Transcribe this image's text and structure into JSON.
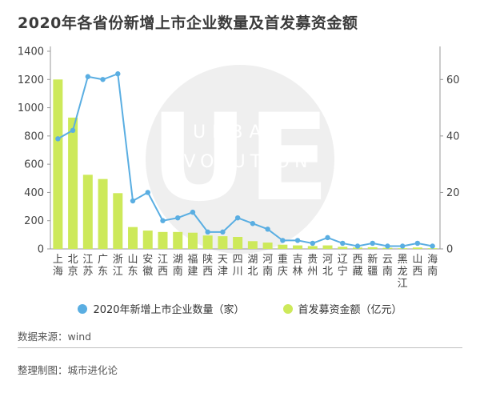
{
  "header": {
    "title": "2020年各省份新增上市企业数量及首发募资金额"
  },
  "watermark": {
    "logo": "UE",
    "line1": "URBAN",
    "line2": "EVOLUTION"
  },
  "legend": {
    "count_label": "2020年新增上市企业数量（家）",
    "amount_label": "首发募资金额（亿元）"
  },
  "footer": {
    "source": "数据来源：wind",
    "credit": "整理制图：城市进化论"
  },
  "colors": {
    "bar": "#cde95a",
    "line": "#5aaee2",
    "axis": "#999999",
    "text": "#444444"
  },
  "chart_data": {
    "type": "bar",
    "categories": [
      "上海",
      "北京",
      "江苏",
      "广东",
      "浙江",
      "山东",
      "安徽",
      "江西",
      "湖南",
      "福建",
      "陕西",
      "天津",
      "四川",
      "湖北",
      "河南",
      "重庆",
      "吉林",
      "贵州",
      "河北",
      "辽宁",
      "西藏",
      "新疆",
      "云南",
      "黑龙江",
      "山西",
      "海南"
    ],
    "series": [
      {
        "name": "首发募资金额（亿元）",
        "type": "bar",
        "axis": "left",
        "values": [
          1200,
          930,
          525,
          495,
          395,
          155,
          130,
          120,
          120,
          115,
          95,
          90,
          85,
          55,
          45,
          30,
          25,
          20,
          25,
          15,
          10,
          12,
          8,
          5,
          10,
          5
        ]
      },
      {
        "name": "2020年新增上市企业数量（家）",
        "type": "line",
        "axis": "right",
        "values": [
          39,
          42,
          61,
          60,
          62,
          17,
          20,
          10,
          11,
          13,
          6,
          6,
          11,
          9,
          7,
          3,
          3,
          2,
          4,
          2,
          1,
          2,
          1,
          1,
          2,
          1
        ]
      }
    ],
    "y_left": {
      "min": 0,
      "max": 1400,
      "ticks": [
        0,
        200,
        400,
        600,
        800,
        1000,
        1200,
        1400
      ]
    },
    "y_right": {
      "min": 0,
      "max": 70,
      "ticks": [
        0,
        20,
        40,
        60
      ]
    },
    "grid": false,
    "legend_position": "bottom"
  }
}
